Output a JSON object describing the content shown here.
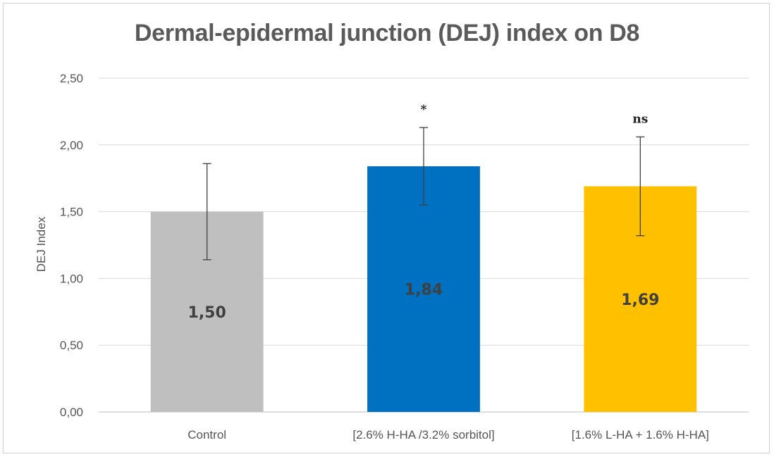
{
  "chart_data": {
    "type": "bar",
    "title": "Dermal-epidermal junction (DEJ) index on D8",
    "ylabel": "DEJ Index",
    "xlabel": "",
    "ylim": [
      0,
      2.5
    ],
    "yticks": [
      "0,00",
      "0,50",
      "1,00",
      "1,50",
      "2,00",
      "2,50"
    ],
    "grid": true,
    "categories": [
      "Control",
      "[2.6% H-HA /3.2% sorbitol]",
      "[1.6% L-HA + 1.6% H-HA]"
    ],
    "values": [
      1.5,
      1.84,
      1.69
    ],
    "value_labels": [
      "1,50",
      "1,84",
      "1,69"
    ],
    "error": [
      0.36,
      0.29,
      0.37
    ],
    "significance": [
      "",
      "*",
      "ns"
    ],
    "colors": [
      "#bfbfbf",
      "#0070c0",
      "#ffc000"
    ]
  }
}
